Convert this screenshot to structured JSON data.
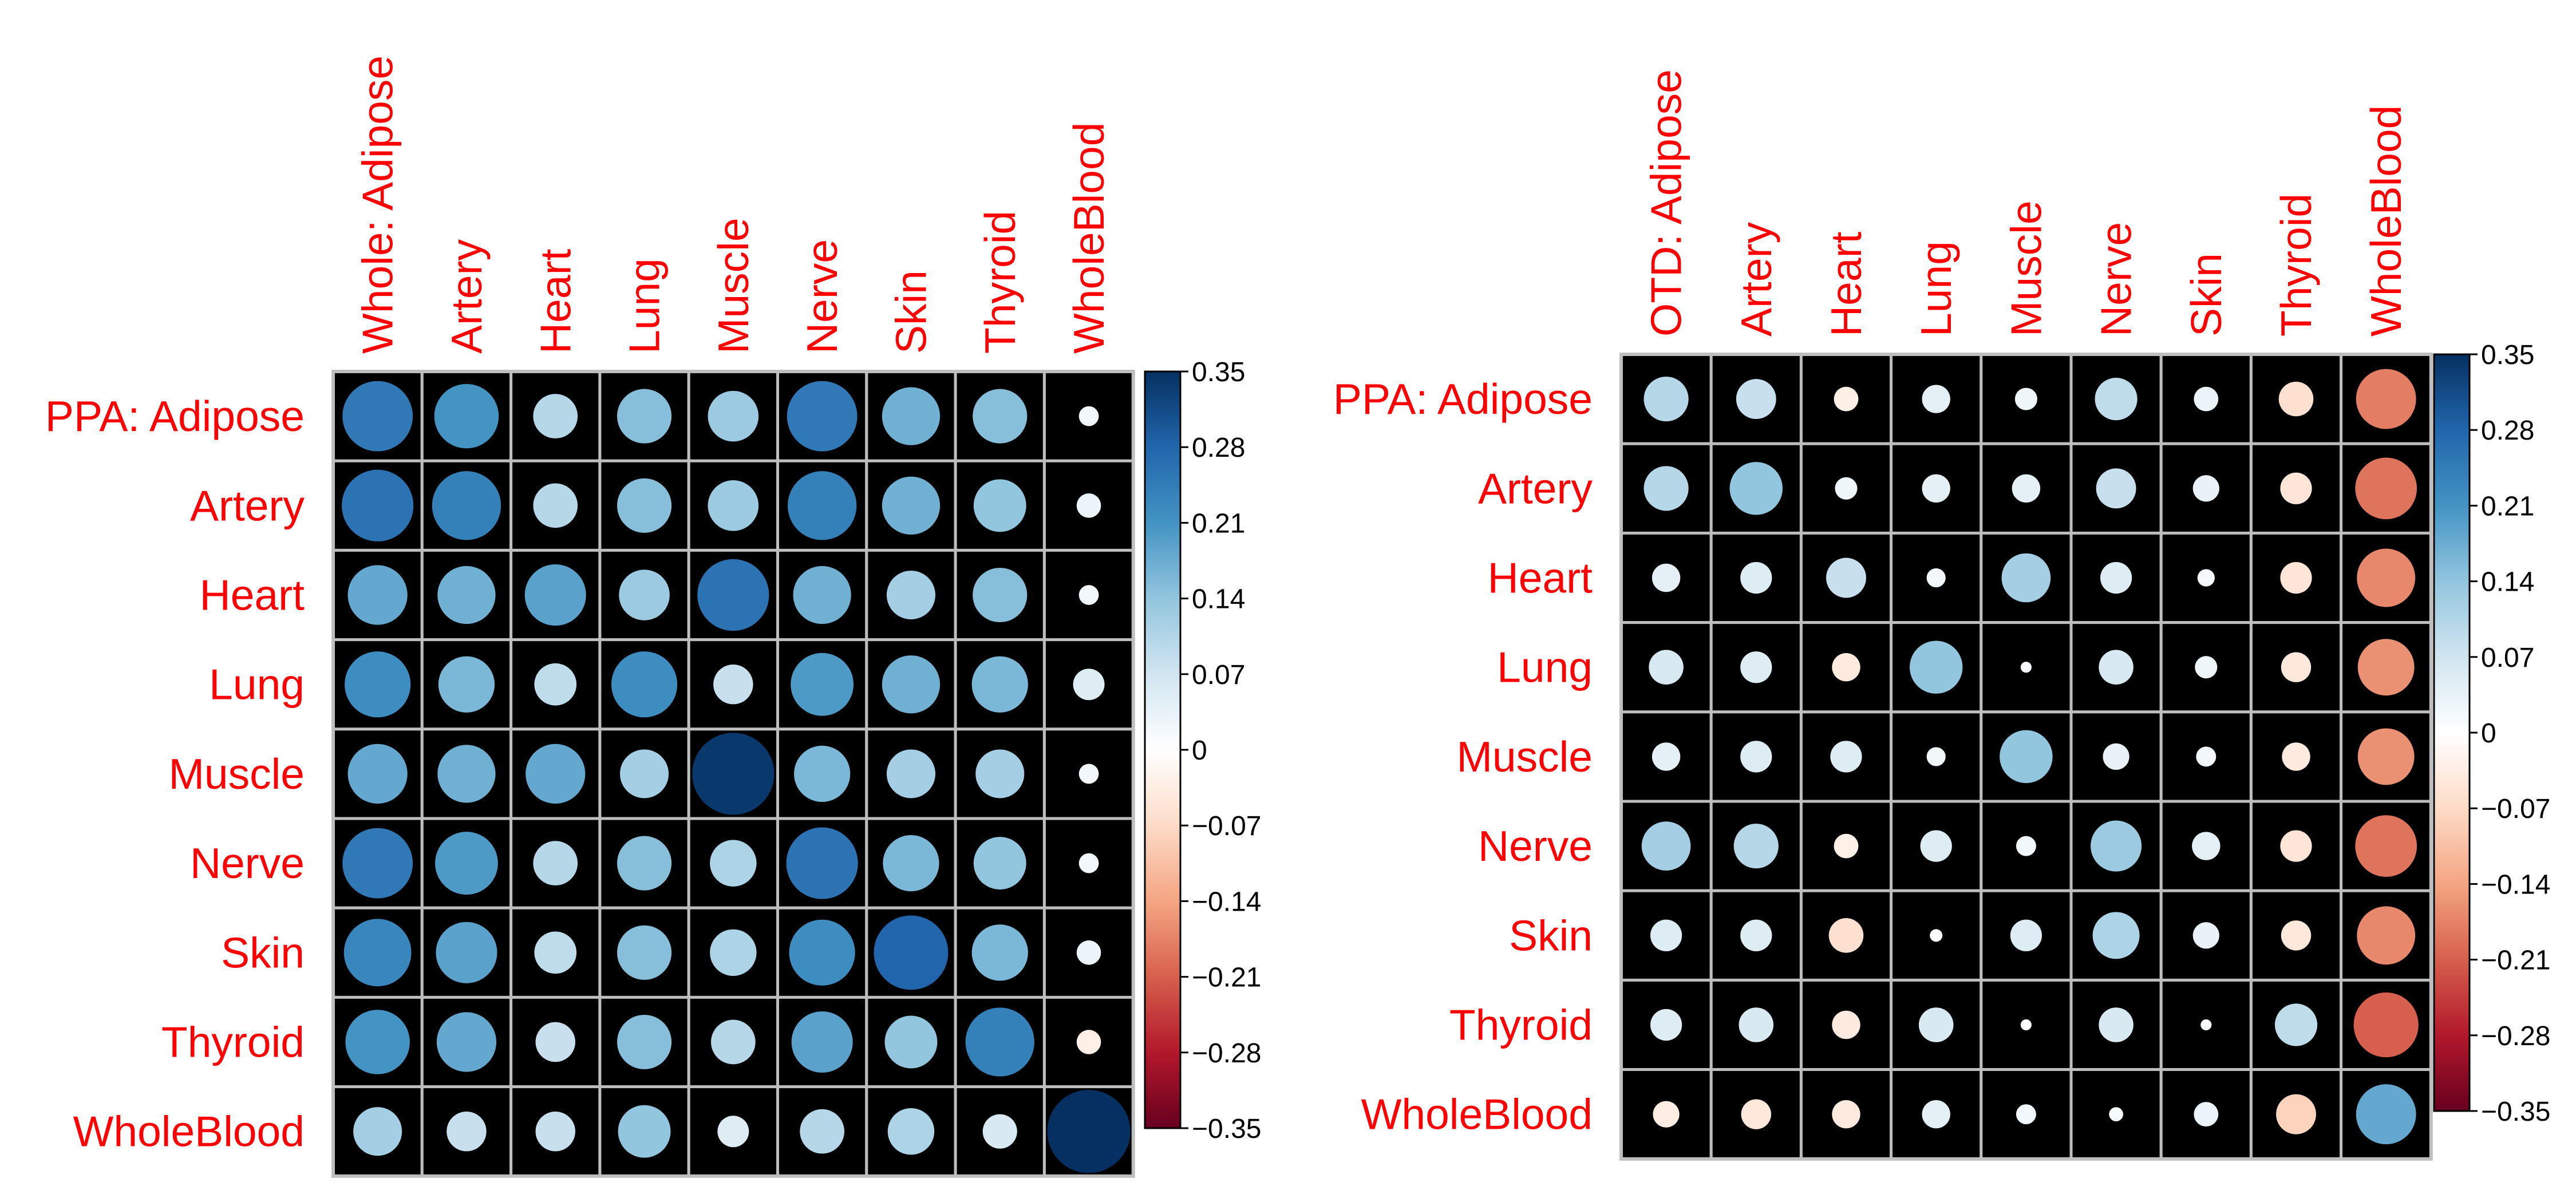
{
  "chart_data": [
    {
      "type": "heatmap",
      "row_labels": [
        "PPA: Adipose",
        "Artery",
        "Heart",
        "Lung",
        "Muscle",
        "Nerve",
        "Skin",
        "Thyroid",
        "WholeBlood"
      ],
      "col_labels": [
        "Whole: Adipose",
        "Artery",
        "Heart",
        "Lung",
        "Muscle",
        "Nerve",
        "Skin",
        "Thyroid",
        "WholeBlood"
      ],
      "values": [
        [
          0.25,
          0.21,
          0.1,
          0.15,
          0.13,
          0.25,
          0.17,
          0.15,
          0.02
        ],
        [
          0.26,
          0.24,
          0.1,
          0.15,
          0.13,
          0.24,
          0.17,
          0.14,
          0.03
        ],
        [
          0.18,
          0.17,
          0.19,
          0.13,
          0.26,
          0.17,
          0.12,
          0.15,
          0.02
        ],
        [
          0.22,
          0.16,
          0.09,
          0.22,
          0.08,
          0.2,
          0.17,
          0.16,
          0.05
        ],
        [
          0.18,
          0.17,
          0.18,
          0.12,
          0.34,
          0.16,
          0.12,
          0.12,
          0.02
        ],
        [
          0.25,
          0.2,
          0.1,
          0.15,
          0.11,
          0.26,
          0.16,
          0.14,
          0.02
        ],
        [
          0.23,
          0.19,
          0.09,
          0.15,
          0.11,
          0.22,
          0.28,
          0.16,
          0.03
        ],
        [
          0.21,
          0.18,
          0.08,
          0.15,
          0.1,
          0.19,
          0.14,
          0.24,
          -0.03
        ],
        [
          0.12,
          0.08,
          0.08,
          0.14,
          0.05,
          0.1,
          0.11,
          0.06,
          0.35
        ]
      ],
      "color_scale": {
        "min": -0.35,
        "max": 0.35,
        "ticks": [
          "0.35",
          "0.28",
          "0.21",
          "0.14",
          "0.07",
          "0",
          "−0.07",
          "−0.14",
          "−0.21",
          "−0.28",
          "−0.35"
        ],
        "stops": [
          "#67001f",
          "#b2182b",
          "#d6604d",
          "#f4a582",
          "#fddbc7",
          "#ffffff",
          "#d1e5f0",
          "#92c5de",
          "#4393c3",
          "#2166ac",
          "#053061"
        ]
      },
      "cell_background": "#000000",
      "grid_color": "#bebebe",
      "label_color": "#ff0000"
    },
    {
      "type": "heatmap",
      "row_labels": [
        "PPA: Adipose",
        "Artery",
        "Heart",
        "Lung",
        "Muscle",
        "Nerve",
        "Skin",
        "Thyroid",
        "WholeBlood"
      ],
      "col_labels": [
        "OTD: Adipose",
        "Artery",
        "Heart",
        "Lung",
        "Muscle",
        "Nerve",
        "Skin",
        "Thyroid",
        "WholeBlood"
      ],
      "values": [
        [
          0.1,
          0.08,
          -0.03,
          0.04,
          0.025,
          0.09,
          0.03,
          -0.06,
          -0.18
        ],
        [
          0.1,
          0.14,
          0.025,
          0.04,
          0.04,
          0.08,
          0.035,
          -0.05,
          -0.19
        ],
        [
          0.04,
          0.05,
          0.08,
          0.018,
          0.12,
          0.05,
          0.015,
          -0.05,
          -0.17
        ],
        [
          0.06,
          0.05,
          -0.04,
          0.14,
          0.006,
          0.06,
          0.025,
          -0.045,
          -0.16
        ],
        [
          0.04,
          0.05,
          0.05,
          0.018,
          0.14,
          0.035,
          0.02,
          -0.04,
          -0.16
        ],
        [
          0.12,
          0.1,
          -0.03,
          0.05,
          0.02,
          0.13,
          0.04,
          -0.05,
          -0.19
        ],
        [
          0.05,
          0.05,
          -0.06,
          0.008,
          0.05,
          0.11,
          0.035,
          -0.045,
          -0.17
        ],
        [
          0.05,
          0.06,
          -0.04,
          0.06,
          0.006,
          0.06,
          0.006,
          0.09,
          -0.21
        ],
        [
          -0.035,
          -0.045,
          -0.04,
          0.04,
          0.02,
          0.01,
          0.03,
          -0.08,
          0.18
        ]
      ],
      "color_scale": {
        "min": -0.35,
        "max": 0.35,
        "ticks": [
          "0.35",
          "0.28",
          "0.21",
          "0.14",
          "0.07",
          "0",
          "−0.07",
          "−0.14",
          "−0.21",
          "−0.28",
          "−0.35"
        ],
        "stops": [
          "#67001f",
          "#b2182b",
          "#d6604d",
          "#f4a582",
          "#fddbc7",
          "#ffffff",
          "#d1e5f0",
          "#92c5de",
          "#4393c3",
          "#2166ac",
          "#053061"
        ]
      },
      "cell_background": "#000000",
      "grid_color": "#bebebe",
      "label_color": "#ff0000"
    }
  ]
}
